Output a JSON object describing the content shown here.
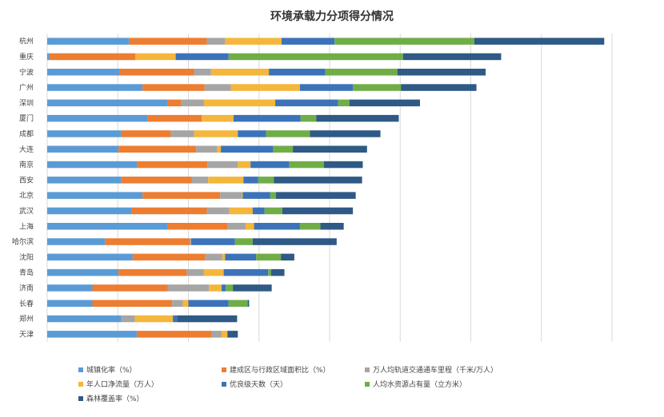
{
  "chart_data": {
    "type": "bar",
    "orientation": "horizontal",
    "stacked": true,
    "title": "环境承载力分项得分情况",
    "categories": [
      "杭州",
      "重庆",
      "宁波",
      "广州",
      "深圳",
      "厦门",
      "成都",
      "大连",
      "南京",
      "西安",
      "北京",
      "武汉",
      "上海",
      "哈尔滨",
      "沈阳",
      "青岛",
      "济南",
      "长春",
      "郑州",
      "天津"
    ],
    "series": [
      {
        "name": "城镇化率（%）",
        "color": "#5b9bd5",
        "values": [
          0.116,
          0.003,
          0.103,
          0.135,
          0.17,
          0.142,
          0.105,
          0.101,
          0.127,
          0.105,
          0.135,
          0.119,
          0.17,
          0.082,
          0.121,
          0.101,
          0.064,
          0.064,
          0.105,
          0.127
        ]
      },
      {
        "name": "建成区与行政区域面积比（%）",
        "color": "#ed7d31",
        "values": [
          0.11,
          0.122,
          0.105,
          0.088,
          0.02,
          0.077,
          0.07,
          0.11,
          0.1,
          0.1,
          0.11,
          0.107,
          0.085,
          0.12,
          0.103,
          0.097,
          0.107,
          0.113,
          0.0,
          0.106
        ]
      },
      {
        "name": "万人均轨道交通通车里程（千米/万人）",
        "color": "#a5a5a5",
        "values": [
          0.026,
          0.0,
          0.024,
          0.037,
          0.032,
          0.0,
          0.033,
          0.03,
          0.043,
          0.023,
          0.031,
          0.032,
          0.026,
          0.002,
          0.024,
          0.024,
          0.058,
          0.015,
          0.019,
          0.014
        ]
      },
      {
        "name": "年人口净流量（万人）",
        "color": "#f4b63b",
        "values": [
          0.08,
          0.057,
          0.082,
          0.098,
          0.101,
          0.045,
          0.062,
          0.005,
          0.018,
          0.05,
          0.001,
          0.033,
          0.012,
          0.0,
          0.004,
          0.028,
          0.018,
          0.008,
          0.054,
          0.008
        ]
      },
      {
        "name": "优良级天数（天）",
        "color": "#3c73b8",
        "values": [
          0.075,
          0.075,
          0.08,
          0.075,
          0.089,
          0.095,
          0.04,
          0.074,
          0.055,
          0.021,
          0.039,
          0.017,
          0.065,
          0.062,
          0.044,
          0.063,
          0.006,
          0.057,
          0.006,
          0.001
        ]
      },
      {
        "name": "人均水资源占有量（立方米）",
        "color": "#70ad47",
        "values": [
          0.198,
          0.247,
          0.102,
          0.068,
          0.016,
          0.022,
          0.062,
          0.028,
          0.049,
          0.022,
          0.008,
          0.025,
          0.029,
          0.025,
          0.035,
          0.004,
          0.01,
          0.027,
          0.0,
          0.0
        ]
      },
      {
        "name": "森林覆盖率（%）",
        "color": "#2e5a85",
        "values": [
          0.184,
          0.139,
          0.125,
          0.107,
          0.1,
          0.117,
          0.1,
          0.105,
          0.055,
          0.125,
          0.113,
          0.1,
          0.033,
          0.119,
          0.019,
          0.019,
          0.055,
          0.002,
          0.085,
          0.014
        ]
      }
    ],
    "xlim": [
      0,
      0.8
    ],
    "grid": true,
    "legend_position": "bottom"
  }
}
